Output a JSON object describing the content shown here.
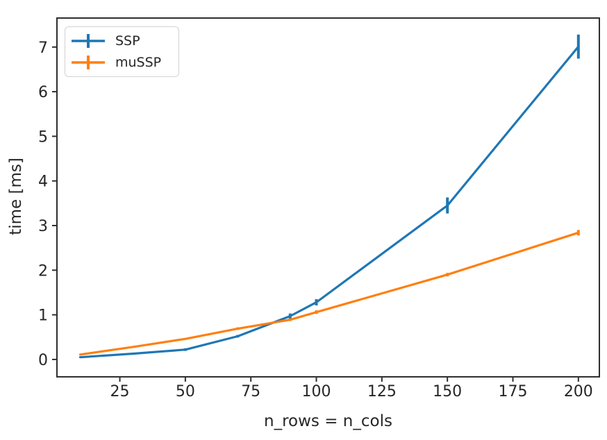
{
  "figure": {
    "background": "#ffffff"
  },
  "colors": {
    "axis": "#2e2e2e",
    "text": "#262626",
    "plot_bg": "#ffffff"
  },
  "chart_data": {
    "type": "line",
    "title": "",
    "xlabel": "n_rows = n_cols",
    "ylabel": "time [ms]",
    "xlim": [
      1,
      208
    ],
    "ylim": [
      -0.39,
      7.65
    ],
    "xticks": [
      25,
      50,
      75,
      100,
      125,
      150,
      175,
      200
    ],
    "yticks": [
      0,
      1,
      2,
      3,
      4,
      5,
      6,
      7
    ],
    "grid": false,
    "legend_position": "upper-left",
    "marker_style": "errorbar",
    "x": [
      10,
      30,
      50,
      70,
      90,
      100,
      150,
      200
    ],
    "series": [
      {
        "name": "SSP",
        "color": "#1f77b4",
        "values": [
          0.05,
          0.13,
          0.22,
          0.52,
          0.97,
          1.28,
          3.45,
          7.01
        ],
        "errors": [
          0.02,
          0.02,
          0.03,
          0.03,
          0.06,
          0.07,
          0.18,
          0.27
        ]
      },
      {
        "name": "muSSP",
        "color": "#ff7f0e",
        "values": [
          0.11,
          0.28,
          0.46,
          0.69,
          0.89,
          1.06,
          1.9,
          2.84
        ],
        "errors": [
          0.02,
          0.02,
          0.02,
          0.03,
          0.03,
          0.04,
          0.04,
          0.06
        ]
      }
    ]
  }
}
